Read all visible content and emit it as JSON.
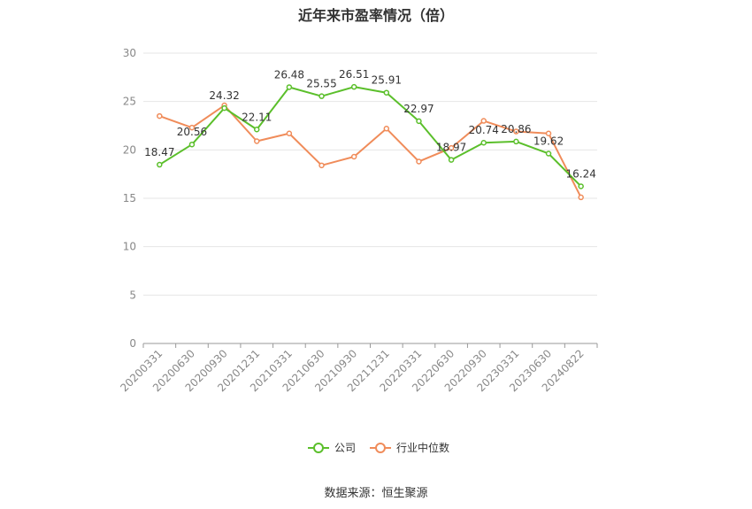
{
  "chart_data": {
    "type": "line",
    "title": "近年来市盈率情况（倍）",
    "source": "数据来源：恒生聚源",
    "categories": [
      "20200331",
      "20200630",
      "20200930",
      "20201231",
      "20210331",
      "20210630",
      "20210930",
      "20211231",
      "20220331",
      "20220630",
      "20220930",
      "20230331",
      "20230630",
      "20240822"
    ],
    "ylim": [
      0,
      30
    ],
    "yticks": [
      0,
      5,
      10,
      15,
      20,
      25,
      30
    ],
    "grid": true,
    "legend_position": "bottom",
    "series": [
      {
        "name": "公司",
        "color": "#5bbf2b",
        "values": [
          18.47,
          20.56,
          24.32,
          22.11,
          26.48,
          25.55,
          26.51,
          25.91,
          22.97,
          18.97,
          20.74,
          20.86,
          19.62,
          16.24
        ],
        "labels": [
          "18.47",
          "20.56",
          "24.32",
          "22.11",
          "26.48",
          "25.55",
          "26.51",
          "25.91",
          "22.97",
          "18.97",
          "20.74",
          "20.86",
          "19.62",
          "16.24"
        ]
      },
      {
        "name": "行业中位数",
        "color": "#f08c5a",
        "values": [
          23.5,
          22.3,
          24.6,
          20.9,
          21.7,
          18.4,
          19.3,
          22.2,
          18.8,
          20.2,
          23.0,
          21.9,
          21.7,
          15.1
        ]
      }
    ]
  }
}
